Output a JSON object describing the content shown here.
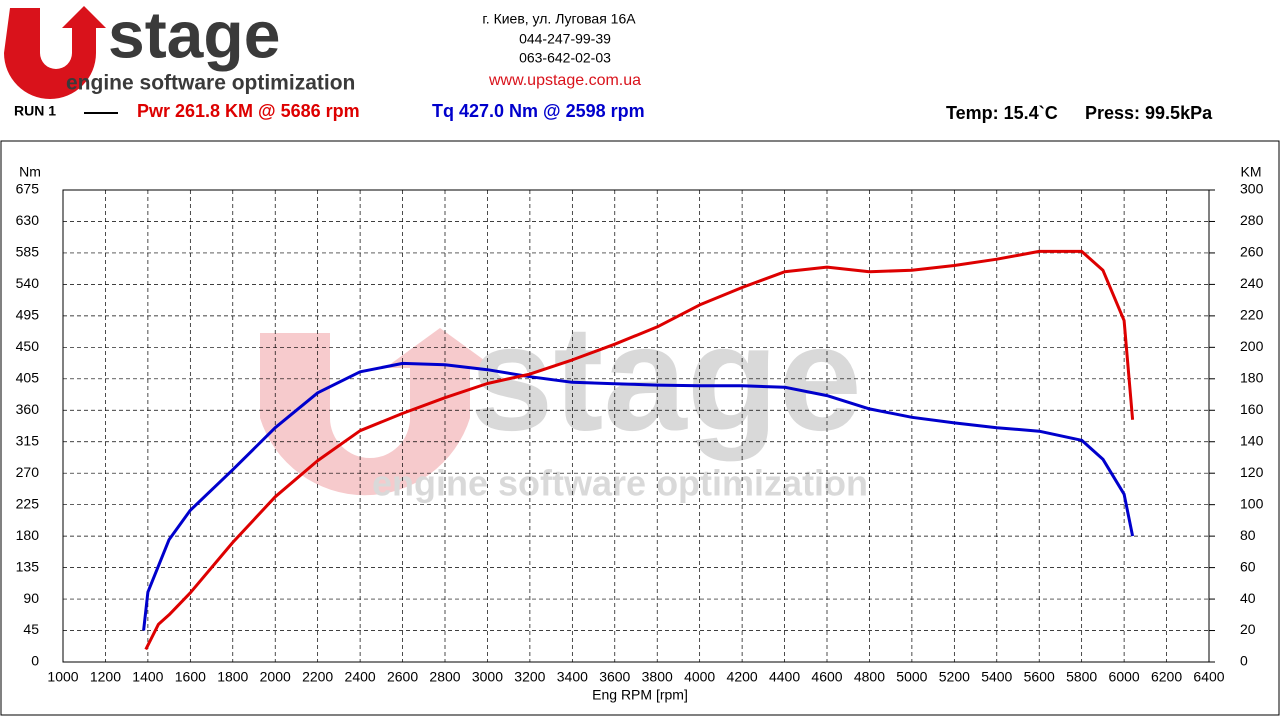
{
  "header": {
    "brand": "stage",
    "tagline": "engine software optimization",
    "address": [
      "г. Киев, ул. Луговая 16А",
      "044-247-99-39",
      "063-642-02-03"
    ],
    "website": "www.upstage.com.ua",
    "run": "RUN 1",
    "power": "Pwr  261.8 KM @ 5686 rpm",
    "torque": "Tq 427.0 Nm @ 2598 rpm",
    "temp": "Temp: 15.4`C",
    "press": "Press: 99.5kPa"
  },
  "chart_data": {
    "type": "line",
    "xlabel": "Eng RPM [rpm]",
    "ylabel": "Nm",
    "y2label": "KM",
    "xlim": [
      1000,
      6400
    ],
    "xticks": [
      1000,
      1200,
      1400,
      1600,
      1800,
      2000,
      2200,
      2400,
      2600,
      2800,
      3000,
      3200,
      3400,
      3600,
      3800,
      4000,
      4200,
      4400,
      4600,
      4800,
      5000,
      5200,
      5400,
      5600,
      5800,
      6000,
      6200,
      6400
    ],
    "ylim": [
      0,
      675
    ],
    "yticks": [
      0,
      45,
      90,
      135,
      180,
      225,
      270,
      315,
      360,
      405,
      450,
      495,
      540,
      585,
      630,
      675
    ],
    "y2lim": [
      0,
      300
    ],
    "y2ticks": [
      0,
      20,
      40,
      60,
      80,
      100,
      120,
      140,
      160,
      180,
      200,
      220,
      240,
      260,
      280,
      300
    ],
    "grid": true,
    "series": [
      {
        "name": "Tq",
        "color": "#0000cc",
        "axis": "y",
        "x": [
          1380,
          1400,
          1500,
          1600,
          1800,
          2000,
          2200,
          2400,
          2600,
          2800,
          3000,
          3200,
          3400,
          3600,
          3800,
          4000,
          4200,
          4400,
          4600,
          4800,
          5000,
          5200,
          5400,
          5600,
          5800,
          5900,
          6000,
          6040
        ],
        "values": [
          45,
          100,
          175,
          217,
          275,
          335,
          385,
          415,
          427,
          425,
          418,
          408,
          400,
          398,
          396,
          395,
          395,
          393,
          381,
          362,
          350,
          342,
          335,
          330,
          317,
          290,
          240,
          180
        ]
      },
      {
        "name": "Pwr",
        "color": "#dd0000",
        "axis": "y2",
        "x": [
          1390,
          1450,
          1500,
          1600,
          1800,
          2000,
          2200,
          2400,
          2600,
          2800,
          3000,
          3200,
          3400,
          3600,
          3800,
          4000,
          4200,
          4400,
          4600,
          4800,
          5000,
          5200,
          5400,
          5600,
          5800,
          5900,
          6000,
          6040
        ],
        "values": [
          8,
          24,
          30,
          44,
          76,
          105,
          128,
          147,
          158,
          168,
          177,
          183,
          192,
          202,
          213,
          227,
          238,
          248,
          251,
          248,
          249,
          252,
          256,
          261,
          261,
          249,
          217,
          154
        ]
      }
    ]
  }
}
